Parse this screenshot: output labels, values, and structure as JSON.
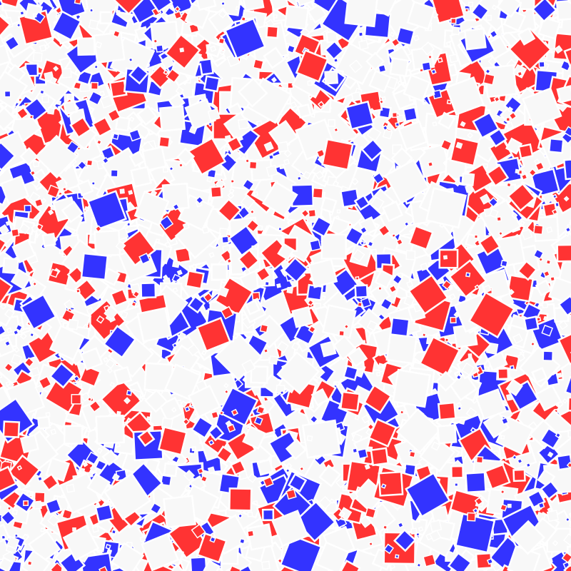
{
  "artwork": {
    "style": "generative rotated overlapping squares with white outlines",
    "background_color": "#f8f8f8",
    "palette": {
      "red": "#ff3333",
      "blue": "#3333ff",
      "white": "#f8f8f8"
    },
    "outline_color": "#ffffff"
  }
}
